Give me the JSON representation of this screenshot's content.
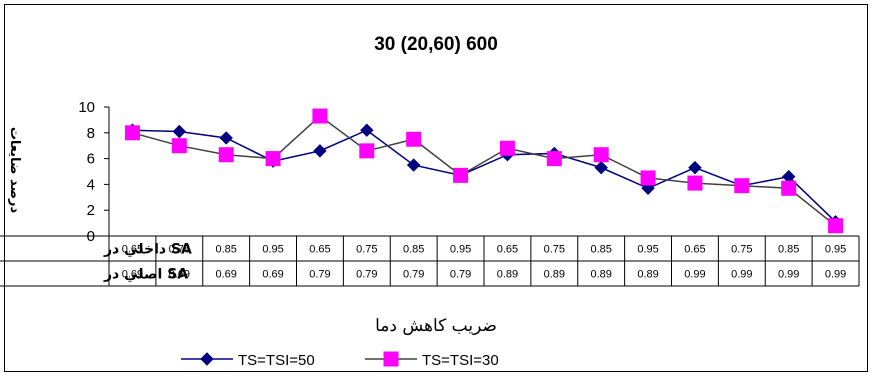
{
  "chart_data": {
    "type": "line",
    "title": "30 (20,60) 600",
    "ylabel": "درصد ضايعات",
    "xlabel": "ضريب كاهش دما",
    "ylim": [
      0,
      10
    ],
    "yticks": [
      0,
      2,
      4,
      6,
      8,
      10
    ],
    "category_rows": [
      {
        "label": "SA داخلي در",
        "values": [
          "0.65",
          "0.75",
          "0.85",
          "0.95",
          "0.65",
          "0.75",
          "0.85",
          "0.95",
          "0.65",
          "0.75",
          "0.85",
          "0.95",
          "0.65",
          "0.75",
          "0.85",
          "0.95"
        ]
      },
      {
        "label": "SA اصلي در",
        "values": [
          "0.69",
          "0.69",
          "0.69",
          "0.69",
          "0.79",
          "0.79",
          "0.79",
          "0.79",
          "0.89",
          "0.89",
          "0.89",
          "0.89",
          "0.99",
          "0.99",
          "0.99",
          "0.99"
        ]
      }
    ],
    "series": [
      {
        "name": "TS=TSI=50",
        "color": "#000080",
        "marker": "diamond",
        "values": [
          8.2,
          8.1,
          7.6,
          5.8,
          6.6,
          8.2,
          5.5,
          4.7,
          6.3,
          6.4,
          5.3,
          3.7,
          5.3,
          3.9,
          4.6,
          1.1
        ]
      },
      {
        "name": "TS=TSI=30",
        "color": "#ff00ff",
        "marker": "square",
        "values": [
          8.0,
          7.0,
          6.3,
          6.0,
          9.3,
          6.6,
          7.5,
          4.7,
          6.8,
          6.0,
          6.3,
          4.5,
          4.1,
          3.9,
          3.7,
          0.8
        ]
      }
    ],
    "legend": "bottom",
    "grid": false
  }
}
